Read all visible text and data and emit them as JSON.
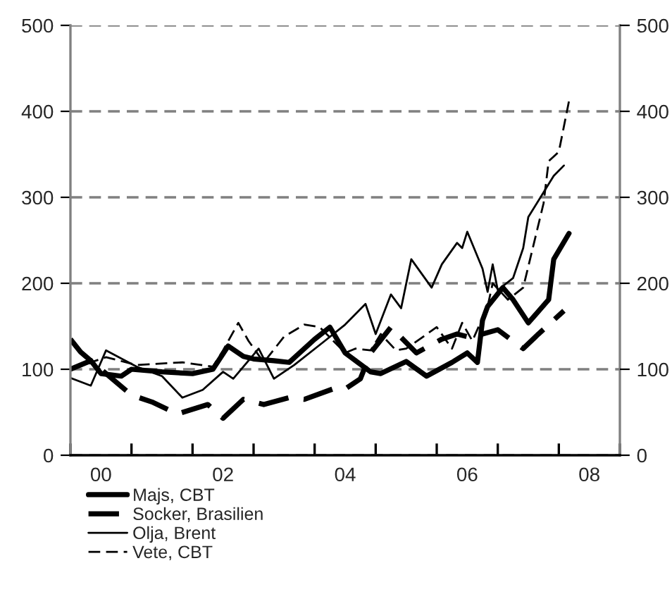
{
  "chart_data": {
    "type": "line",
    "xlim": [
      "2000",
      "2009"
    ],
    "ylim": [
      0,
      500
    ],
    "yticks": [
      0,
      100,
      200,
      300,
      400,
      500
    ],
    "y2lim": [
      0,
      500
    ],
    "y2ticks": [
      0,
      100,
      200,
      300,
      400,
      500
    ],
    "xticks": [
      {
        "value": "2000",
        "label": null
      },
      {
        "value": "2001",
        "label": null
      },
      {
        "value": "2002",
        "label": null
      },
      {
        "value": "2003",
        "label": null
      },
      {
        "value": "2004",
        "label": null
      },
      {
        "value": "2005",
        "label": null
      },
      {
        "value": "2006",
        "label": null
      },
      {
        "value": "2007",
        "label": null
      },
      {
        "value": "2008",
        "label": null
      },
      {
        "value": "2009",
        "label": null
      },
      {
        "value": "2000-07",
        "label": "00"
      },
      {
        "value": "2002-07",
        "label": "02"
      },
      {
        "value": "2004-07",
        "label": "04"
      },
      {
        "value": "2006-07",
        "label": "06"
      },
      {
        "value": "2008-07",
        "label": "08"
      }
    ],
    "grid": "y",
    "legend": "bottom left",
    "marker": "none",
    "series": [
      {
        "name": "Majs, CBT",
        "color": "#000000",
        "line_style": "solid",
        "x": [
          "2000-01",
          "2000-05",
          "2000-07",
          "2000-11",
          "2001-01",
          "2001-07",
          "2002-01",
          "2002-05",
          "2002-08",
          "2002-11",
          "2003-01",
          "2003-05",
          "2003-08",
          "2004-01",
          "2004-04",
          "2004-07",
          "2004-12",
          "2005-02",
          "2005-07",
          "2005-11",
          "2006-04",
          "2006-07",
          "2006-09",
          "2006-10",
          "2006-11",
          "2007-02",
          "2007-04",
          "2007-07",
          "2007-11",
          "2007-12",
          "2008-03"
        ],
        "values": [
          100,
          110,
          95,
          92,
          100,
          97,
          95,
          100,
          127,
          115,
          112,
          110,
          108,
          135,
          149,
          119,
          97,
          95,
          109,
          92,
          108,
          119,
          108,
          157,
          173,
          195,
          181,
          154,
          181,
          228,
          258
        ]
      },
      {
        "name": "Socker, Brasilien",
        "color": "#000000",
        "line_style": "dashed",
        "x": [
          "2000-01",
          "2000-03",
          "2000-06",
          "2000-09",
          "2001-01",
          "2001-05",
          "2001-10",
          "2002-04",
          "2002-07",
          "2002-11",
          "2003-03",
          "2003-08",
          "2003-11",
          "2004-05",
          "2004-07",
          "2004-10",
          "2004-12",
          "2005-04",
          "2005-09",
          "2006-02",
          "2006-05",
          "2006-07",
          "2006-10",
          "2007-01",
          "2007-06",
          "2007-09",
          "2008-02"
        ],
        "values": [
          135,
          120,
          105,
          90,
          70,
          62,
          48,
          59,
          43,
          65,
          59,
          67,
          65,
          78,
          77,
          89,
          119,
          149,
          119,
          135,
          141,
          138,
          141,
          146,
          124,
          141,
          168
        ]
      },
      {
        "name": "Olja, Brent",
        "color": "#000000",
        "line_style": "solid",
        "x": [
          "2000-01",
          "2000-05",
          "2000-08",
          "2001-02",
          "2001-07",
          "2001-11",
          "2002-03",
          "2002-07",
          "2002-09",
          "2003-02",
          "2003-05",
          "2003-09",
          "2004-03",
          "2004-07",
          "2004-11",
          "2005-01",
          "2005-04",
          "2005-06",
          "2005-08",
          "2005-12",
          "2006-02",
          "2006-05",
          "2006-06",
          "2006-07",
          "2006-10",
          "2006-11",
          "2006-12",
          "2007-01",
          "2007-04",
          "2007-06",
          "2007-07",
          "2007-12",
          "2008-02"
        ],
        "values": [
          90,
          81,
          122,
          103,
          92,
          67,
          76,
          97,
          89,
          124,
          89,
          105,
          133,
          152,
          176,
          141,
          187,
          171,
          228,
          195,
          222,
          247,
          241,
          260,
          217,
          190,
          222,
          192,
          206,
          241,
          277,
          325,
          337
        ]
      },
      {
        "name": "Vete, CBT",
        "color": "#000000",
        "line_style": "dashed",
        "x": [
          "2000-01",
          "2000-08",
          "2001-02",
          "2001-11",
          "2002-05",
          "2002-07",
          "2002-10",
          "2002-12",
          "2003-03",
          "2003-07",
          "2003-11",
          "2004-02",
          "2004-07",
          "2004-09",
          "2004-12",
          "2005-02",
          "2005-05",
          "2005-07",
          "2006-01",
          "2006-04",
          "2006-06",
          "2006-08",
          "2006-11",
          "2006-12",
          "2007-03",
          "2007-06",
          "2007-08",
          "2007-10",
          "2007-11",
          "2008-01",
          "2008-03"
        ],
        "values": [
          100,
          114,
          105,
          108,
          103,
          122,
          154,
          133,
          108,
          138,
          152,
          149,
          119,
          124,
          122,
          141,
          122,
          124,
          149,
          124,
          154,
          133,
          173,
          200,
          181,
          195,
          244,
          293,
          342,
          353,
          412
        ]
      }
    ]
  }
}
